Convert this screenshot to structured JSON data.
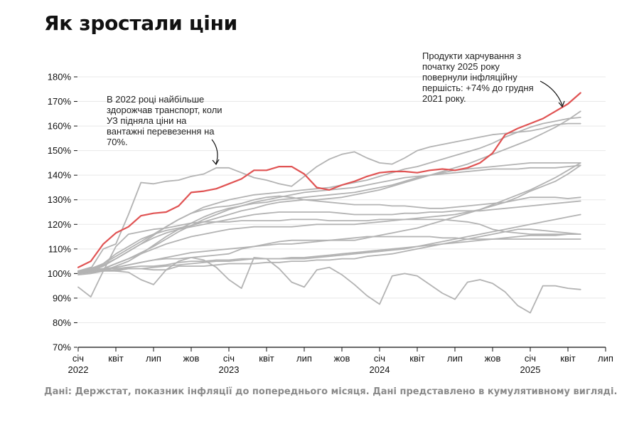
{
  "title": "Як зростали ціни",
  "source": "Дані: Держстат, показник інфляції до попереднього місяця. Дані представлено в кумулятивному вигляді.",
  "colors": {
    "highlight": "#e05353",
    "other": "#b3b3b3",
    "grid": "#e8e8e8",
    "axis": "#111111"
  },
  "annotations": [
    {
      "lines": [
        "В 2022 році найбільше",
        "здорожчав транспорт, коли",
        "УЗ підняла ціни на",
        "вантажні перевезення на",
        "70%."
      ]
    },
    {
      "lines": [
        "Продукти харчування з",
        "початку 2025 року",
        "повернули інфляційну",
        "першість: +74% до грудня",
        "2021 року."
      ]
    }
  ],
  "chart_data": {
    "type": "line",
    "title": "Як зростали ціни",
    "ylim": [
      70,
      180
    ],
    "y_ticks": [
      "70%",
      "80%",
      "90%",
      "100%",
      "110%",
      "120%",
      "130%",
      "140%",
      "150%",
      "160%",
      "170%",
      "180%"
    ],
    "y_tick_values": [
      70,
      80,
      90,
      100,
      110,
      120,
      130,
      140,
      150,
      160,
      170,
      180
    ],
    "x_range": [
      "2022-01",
      "2025-07"
    ],
    "x_ticks": [
      {
        "x": "2022-01",
        "label": "січ",
        "year": "2022"
      },
      {
        "x": "2022-04",
        "label": "квіт",
        "year": ""
      },
      {
        "x": "2022-07",
        "label": "лип",
        "year": ""
      },
      {
        "x": "2022-10",
        "label": "жов",
        "year": ""
      },
      {
        "x": "2023-01",
        "label": "січ",
        "year": "2023"
      },
      {
        "x": "2023-04",
        "label": "квіт",
        "year": ""
      },
      {
        "x": "2023-07",
        "label": "лип",
        "year": ""
      },
      {
        "x": "2023-10",
        "label": "жов",
        "year": ""
      },
      {
        "x": "2024-01",
        "label": "січ",
        "year": "2024"
      },
      {
        "x": "2024-04",
        "label": "квіт",
        "year": ""
      },
      {
        "x": "2024-07",
        "label": "лип",
        "year": ""
      },
      {
        "x": "2024-10",
        "label": "жов",
        "year": ""
      },
      {
        "x": "2025-01",
        "label": "січ",
        "year": "2025"
      },
      {
        "x": "2025-04",
        "label": "квіт",
        "year": ""
      },
      {
        "x": "2025-07",
        "label": "лип",
        "year": ""
      }
    ],
    "grid": true,
    "series_start": "2022-01",
    "series": [
      {
        "highlight": true,
        "values": [
          102.5,
          105,
          112,
          116.5,
          119,
          123.5,
          124.5,
          125,
          127.5,
          133,
          133.5,
          134.5,
          136.5,
          138.5,
          142,
          142,
          143.5,
          143.5,
          140.5,
          135,
          134,
          136,
          137.5,
          139.5,
          141,
          141.5,
          141.5,
          141,
          142,
          142.5,
          142,
          143,
          145,
          149,
          156.5,
          159,
          161,
          163,
          166,
          169,
          173.5
        ]
      },
      {
        "values": [
          101,
          102,
          110,
          112,
          124,
          137,
          136.5,
          137.5,
          138,
          139.5,
          140.5,
          143,
          143,
          141,
          139,
          138,
          136.5,
          135.5,
          139.5,
          143.5,
          146.5,
          148.5,
          149.5,
          147,
          145,
          144.5,
          147,
          150,
          151.5,
          152.5,
          153.5,
          154.5,
          155.5,
          156.5,
          157,
          157.5,
          158,
          159,
          160.5,
          161,
          161
        ]
      },
      {
        "values": [
          101,
          102,
          104,
          107,
          110,
          113,
          116,
          119,
          122,
          124.5,
          127,
          128.5,
          130,
          131,
          132,
          132.5,
          133,
          133.5,
          134,
          134.5,
          135,
          136,
          137,
          138,
          139.5,
          141,
          142.5,
          143.5,
          145,
          146.5,
          148,
          149.5,
          151,
          153,
          155.5,
          157.5,
          159.5,
          161,
          162,
          163,
          163.5
        ]
      },
      {
        "values": [
          100.5,
          101.5,
          104,
          108,
          111,
          114,
          116,
          117.5,
          118.5,
          119.5,
          121,
          122.5,
          124,
          125.5,
          126.5,
          128,
          129,
          129.5,
          130,
          130,
          130.5,
          131,
          132,
          133,
          134,
          135.5,
          137,
          138.5,
          140,
          141.5,
          143,
          144.5,
          146.5,
          148.5,
          150.5,
          152.5,
          154.5,
          157,
          159.5,
          162.5,
          166
        ]
      },
      {
        "values": [
          100.5,
          101,
          103,
          106,
          109,
          112,
          115.5,
          119,
          122,
          124.5,
          126,
          127,
          127.5,
          128.5,
          130,
          131,
          131.5,
          131,
          130,
          129.5,
          129,
          128.5,
          128,
          128,
          128,
          127.5,
          127.5,
          127,
          126.5,
          126.5,
          127,
          127.5,
          128,
          128.5,
          129,
          130,
          131,
          131,
          131,
          130.5,
          131
        ]
      },
      {
        "values": [
          100.5,
          101.5,
          103.5,
          106,
          109,
          112,
          114.5,
          116.5,
          118,
          119,
          120,
          121,
          122,
          123,
          124,
          124.5,
          125,
          125,
          125,
          125,
          125,
          124.5,
          124,
          124,
          124,
          124,
          124.5,
          124.5,
          125,
          125,
          125.5,
          125.5,
          125.5,
          126,
          126.5,
          127,
          127.5,
          128,
          128.5,
          129,
          129.5
        ]
      },
      {
        "values": [
          100,
          100.5,
          101.5,
          102.5,
          103.5,
          104.5,
          105.5,
          106.5,
          107.5,
          108.5,
          109,
          109.5,
          110,
          110.5,
          111,
          111.5,
          112,
          112,
          112.5,
          113,
          113.5,
          114,
          114.5,
          115,
          115,
          115,
          115,
          115,
          115,
          114.5,
          114.5,
          114,
          114,
          114,
          114,
          114,
          114,
          114,
          114,
          114,
          114
        ]
      },
      {
        "values": [
          100.5,
          101,
          102,
          104,
          106,
          108,
          110,
          112,
          113.5,
          115,
          116,
          117,
          118,
          118.5,
          119,
          119,
          119,
          119,
          119.5,
          120,
          120,
          120,
          120,
          120.5,
          121,
          121.5,
          122,
          122.5,
          123,
          123.5,
          124,
          125,
          126,
          127.5,
          129,
          131,
          133.5,
          135.5,
          137.5,
          140.5,
          144
        ]
      },
      {
        "values": [
          100,
          100.5,
          101,
          101.5,
          102,
          102,
          102.5,
          103,
          103.5,
          104,
          104.5,
          105,
          105,
          105.5,
          106,
          106,
          106,
          106.5,
          106.5,
          107,
          107.5,
          108,
          108.5,
          109,
          109.5,
          110,
          110.5,
          111,
          111.5,
          112,
          112.5,
          113,
          113.5,
          114,
          114.5,
          115,
          115.5,
          115.5,
          115.5,
          116,
          116
        ]
      },
      {
        "values": [
          100,
          101,
          102,
          104,
          106,
          108.5,
          111,
          114,
          117,
          119.5,
          122,
          124,
          126,
          127.5,
          129,
          130,
          131,
          132,
          133,
          133.5,
          134,
          134.5,
          135,
          136,
          137,
          138,
          139,
          139.5,
          140,
          140.5,
          141,
          141.5,
          142,
          142.5,
          142.5,
          142.5,
          143,
          143,
          143,
          143.5,
          144
        ]
      },
      {
        "values": [
          100.5,
          101,
          102,
          102.5,
          103.5,
          104.5,
          105.5,
          106,
          106,
          106.5,
          107,
          107.5,
          108,
          110,
          111,
          112,
          113,
          113.5,
          113.5,
          113.5,
          113.5,
          113.5,
          113.5,
          114.5,
          115.5,
          116.5,
          117.5,
          118.5,
          120,
          121.5,
          123,
          124.5,
          126,
          128,
          130,
          132,
          134,
          136.5,
          139,
          142,
          145
        ]
      },
      {
        "values": [
          99.5,
          100,
          101,
          103,
          105,
          108,
          111.5,
          115,
          118,
          120.5,
          123,
          125,
          126.5,
          127.5,
          128.5,
          129,
          130,
          130.5,
          131,
          131.5,
          132,
          132.5,
          133,
          134,
          135,
          136,
          137.5,
          139,
          140,
          141,
          142,
          142.5,
          143,
          143.5,
          144,
          144.5,
          145,
          145,
          145,
          145,
          145
        ]
      },
      {
        "values": [
          101,
          101.5,
          102,
          102,
          102.5,
          103,
          103,
          103.5,
          104.5,
          105,
          105,
          105.5,
          105.5,
          106,
          106,
          106,
          106,
          106,
          106,
          106.5,
          107,
          107.5,
          108,
          108.5,
          109,
          109.5,
          110,
          111,
          112,
          113,
          114,
          115,
          116,
          117,
          118,
          119,
          120,
          121,
          122,
          123,
          124
        ]
      },
      {
        "values": [
          94.5,
          90.5,
          101,
          111,
          116,
          117,
          118,
          118.5,
          119.5,
          120.5,
          121,
          121,
          121,
          121.5,
          121.5,
          121.5,
          121.5,
          122,
          122,
          122,
          121.5,
          121.5,
          121.5,
          121.5,
          122,
          122,
          122,
          122,
          122,
          122,
          121.5,
          121,
          120,
          118,
          117,
          116.5,
          116,
          116,
          116,
          116,
          116
        ]
      },
      {
        "values": [
          101,
          102.5,
          101,
          101,
          102,
          102,
          101.5,
          101.5,
          103,
          103,
          103,
          103.5,
          104,
          104,
          104,
          104.5,
          104.5,
          105,
          105,
          105.5,
          105.5,
          106,
          106,
          107,
          107.5,
          108,
          109,
          110,
          111,
          112,
          113,
          114,
          115,
          116,
          117,
          118,
          118,
          117.5,
          117,
          116.5,
          116
        ]
      },
      {
        "values": [
          101,
          101.5,
          102,
          101,
          100.5,
          97.5,
          95.5,
          101.5,
          105,
          106.5,
          105.5,
          102.5,
          97.5,
          94,
          106.5,
          106,
          102,
          96.5,
          94.5,
          101.5,
          102.5,
          99.5,
          95.5,
          91,
          87.5,
          99,
          100,
          99,
          95.5,
          92,
          89.5,
          96.5,
          97.5,
          96,
          92.5,
          87,
          84,
          95,
          95,
          94,
          93.5
        ]
      }
    ]
  }
}
